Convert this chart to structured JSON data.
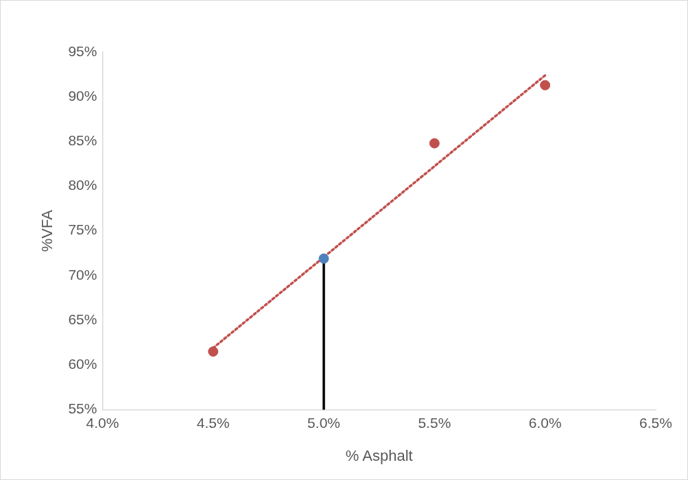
{
  "chart_data": {
    "type": "scatter",
    "xlabel": "% Asphalt",
    "ylabel": "%VFA",
    "xlim": [
      4.0,
      6.5
    ],
    "xticks": [
      {
        "value": 4.0,
        "label": "4.0%"
      },
      {
        "value": 4.5,
        "label": "4.5%"
      },
      {
        "value": 5.0,
        "label": "5.0%"
      },
      {
        "value": 5.5,
        "label": "5.5%"
      },
      {
        "value": 6.0,
        "label": "6.0%"
      },
      {
        "value": 6.5,
        "label": "6.5%"
      }
    ],
    "ylim": [
      55,
      95
    ],
    "yticks": [
      {
        "value": 55,
        "label": "55%"
      },
      {
        "value": 60,
        "label": "60%"
      },
      {
        "value": 65,
        "label": "65%"
      },
      {
        "value": 70,
        "label": "70%"
      },
      {
        "value": 75,
        "label": "75%"
      },
      {
        "value": 80,
        "label": "80%"
      },
      {
        "value": 85,
        "label": "85%"
      },
      {
        "value": 90,
        "label": "90%"
      },
      {
        "value": 95,
        "label": "95%"
      }
    ],
    "grid": false,
    "legend": false,
    "series": [
      {
        "type": "line",
        "color": "#c0504d",
        "x": [
          4.5,
          6.0
        ],
        "values": [
          61.9,
          92.4
        ],
        "marker": "none",
        "line_style": "dotted"
      },
      {
        "type": "line",
        "color": "#000000",
        "x": [
          5.0,
          5.0
        ],
        "values": [
          55,
          71.9
        ],
        "marker": "none",
        "line_style": "solid"
      },
      {
        "type": "scatter",
        "color": "#c0504d",
        "x": [
          4.5,
          5.5,
          6.0
        ],
        "values": [
          61.5,
          84.8,
          91.3
        ],
        "marker": "circle"
      },
      {
        "type": "scatter",
        "color": "#4f81bd",
        "x": [
          5.0
        ],
        "values": [
          71.9
        ],
        "marker": "circle"
      }
    ]
  }
}
